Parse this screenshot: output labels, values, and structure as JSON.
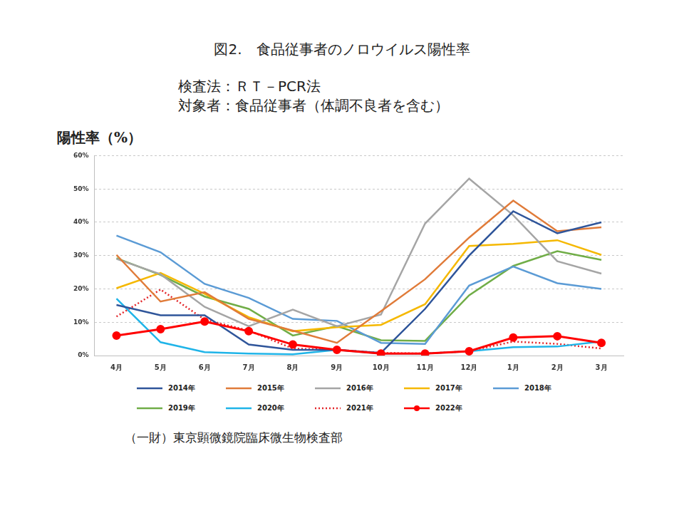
{
  "chart_data": {
    "type": "line",
    "title": "図2.　食品従事者のノロウイルス陽性率",
    "subtitle": [
      "検査法：ＲＴ－PCR法",
      "対象者：食品従事者（体調不良者を含む）"
    ],
    "y_label": "陽性率（%）",
    "source": "（一財）東京顕微鏡院臨床微生物検査部",
    "categories": [
      "4月",
      "5月",
      "6月",
      "7月",
      "8月",
      "9月",
      "10月",
      "11月",
      "12月",
      "1月",
      "2月",
      "3月"
    ],
    "ylim": [
      0,
      60
    ],
    "yticks": [
      {
        "value": 0,
        "label": "0%"
      },
      {
        "value": 10,
        "label": "10%"
      },
      {
        "value": 20,
        "label": "20%"
      },
      {
        "value": 30,
        "label": "30%"
      },
      {
        "value": 40,
        "label": "40%"
      },
      {
        "value": 50,
        "label": "50%"
      },
      {
        "value": 60,
        "label": "60%"
      }
    ],
    "grid": true,
    "legend": "bottom",
    "series": [
      {
        "name": "2014年",
        "color": "#2f559a",
        "line_style": "solid",
        "marker": "none",
        "values": [
          15.2,
          12.1,
          12.1,
          3.3,
          1.7,
          1.7,
          0.8,
          14.0,
          30.0,
          43.3,
          36.7,
          40.0
        ]
      },
      {
        "name": "2015年",
        "color": "#e07b39",
        "line_style": "solid",
        "marker": "none",
        "values": [
          30.2,
          16.2,
          19.0,
          11.0,
          7.5,
          3.8,
          13.3,
          22.9,
          35.4,
          46.5,
          37.3,
          38.5
        ]
      },
      {
        "name": "2016年",
        "color": "#a5a5a5",
        "line_style": "solid",
        "marker": "none",
        "values": [
          29.0,
          24.4,
          14.6,
          8.8,
          13.8,
          8.8,
          12.3,
          39.6,
          53.1,
          42.1,
          28.3,
          24.6
        ]
      },
      {
        "name": "2017年",
        "color": "#f5b800",
        "line_style": "solid",
        "marker": "none",
        "values": [
          20.2,
          24.8,
          18.5,
          11.5,
          7.3,
          8.5,
          9.2,
          15.4,
          32.9,
          33.5,
          34.6,
          30.2
        ]
      },
      {
        "name": "2018年",
        "color": "#5b9bd5",
        "line_style": "solid",
        "marker": "none",
        "values": [
          36.0,
          31.0,
          21.5,
          17.3,
          11.0,
          10.4,
          3.8,
          3.5,
          21.0,
          26.7,
          21.7,
          20.0
        ]
      },
      {
        "name": "2019年",
        "color": "#70ad47",
        "line_style": "solid",
        "marker": "none",
        "values": [
          29.2,
          24.2,
          17.7,
          14.0,
          6.0,
          8.8,
          4.6,
          4.4,
          18.1,
          26.9,
          31.3,
          28.7
        ]
      },
      {
        "name": "2020年",
        "color": "#1fb4e8",
        "line_style": "solid",
        "marker": "none",
        "values": [
          17.1,
          4.0,
          1.0,
          0.6,
          0.4,
          1.7,
          0.6,
          0.6,
          1.3,
          2.5,
          2.7,
          4.2
        ]
      },
      {
        "name": "2021年",
        "color": "#e3262a",
        "line_style": "dotted",
        "marker": "none",
        "values": [
          11.7,
          19.8,
          10.8,
          7.5,
          2.1,
          1.7,
          0.8,
          0.6,
          1.3,
          4.2,
          3.5,
          2.1
        ]
      },
      {
        "name": "2022年",
        "color": "#ff0000",
        "line_style": "solid",
        "marker": "circle",
        "values": [
          6.0,
          7.9,
          10.2,
          7.3,
          3.3,
          1.7,
          0.6,
          0.6,
          1.3,
          5.4,
          5.8,
          3.8
        ]
      }
    ]
  }
}
